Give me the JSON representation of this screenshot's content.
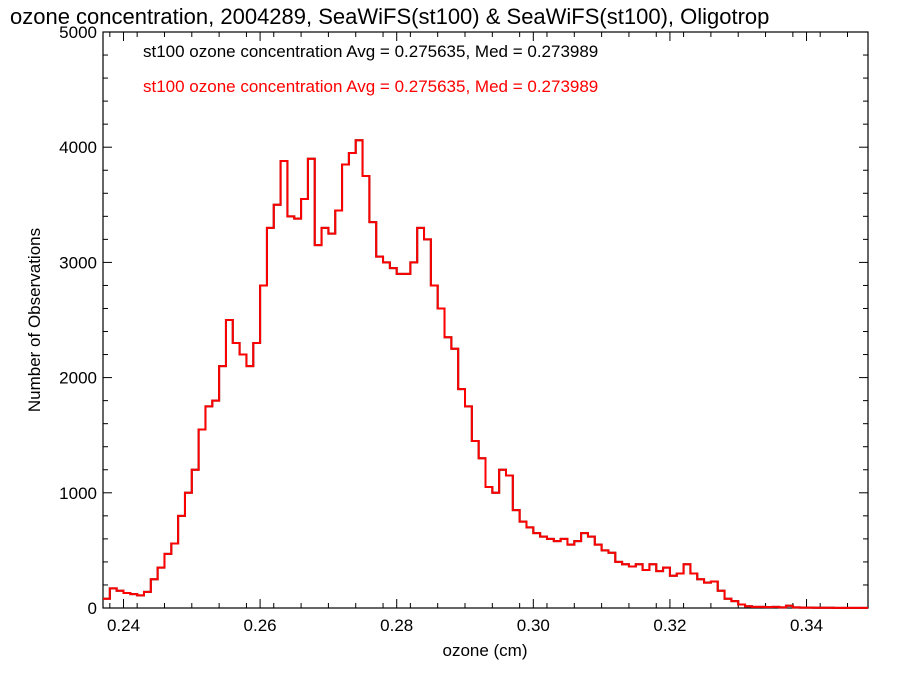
{
  "chart_data": {
    "type": "histogram",
    "title": "ozone concentration, 2004289, SeaWiFS(st100) & SeaWiFS(st100), Oligotrop",
    "xlabel": "ozone (cm)",
    "ylabel": "Number of Observations",
    "xlim": [
      0.237,
      0.349
    ],
    "ylim": [
      0,
      5000
    ],
    "xticks": [
      0.24,
      0.26,
      0.28,
      0.3,
      0.32,
      0.34
    ],
    "xtick_labels": [
      "0.24",
      "0.26",
      "0.28",
      "0.30",
      "0.32",
      "0.34"
    ],
    "yticks": [
      0,
      1000,
      2000,
      3000,
      4000,
      5000
    ],
    "ytick_labels": [
      "0",
      "1000",
      "2000",
      "3000",
      "4000",
      "5000"
    ],
    "grid": false,
    "legend_placement": "top-left",
    "series": [
      {
        "name": "st100 ozone concentration Avg = 0.275635, Med = 0.273989",
        "color": "#000000",
        "x": [
          0.237,
          0.238,
          0.239,
          0.24,
          0.241,
          0.242,
          0.243,
          0.244,
          0.245,
          0.246,
          0.247,
          0.248,
          0.249,
          0.25,
          0.251,
          0.252,
          0.253,
          0.254,
          0.255,
          0.256,
          0.257,
          0.258,
          0.259,
          0.26,
          0.261,
          0.262,
          0.263,
          0.264,
          0.265,
          0.266,
          0.267,
          0.268,
          0.269,
          0.27,
          0.271,
          0.272,
          0.273,
          0.274,
          0.275,
          0.276,
          0.277,
          0.278,
          0.279,
          0.28,
          0.281,
          0.282,
          0.283,
          0.284,
          0.285,
          0.286,
          0.287,
          0.288,
          0.289,
          0.29,
          0.291,
          0.292,
          0.293,
          0.294,
          0.295,
          0.296,
          0.297,
          0.298,
          0.299,
          0.3,
          0.301,
          0.302,
          0.303,
          0.304,
          0.305,
          0.306,
          0.307,
          0.308,
          0.309,
          0.31,
          0.311,
          0.312,
          0.313,
          0.314,
          0.315,
          0.316,
          0.317,
          0.318,
          0.319,
          0.32,
          0.321,
          0.322,
          0.323,
          0.324,
          0.325,
          0.326,
          0.327,
          0.328,
          0.329,
          0.33,
          0.331,
          0.332,
          0.333,
          0.334,
          0.335,
          0.336,
          0.337,
          0.338,
          0.339,
          0.34,
          0.341,
          0.342,
          0.343,
          0.344,
          0.345,
          0.346,
          0.347,
          0.348
        ],
        "values": [
          80,
          170,
          150,
          130,
          120,
          110,
          140,
          250,
          350,
          470,
          560,
          800,
          1000,
          1200,
          1550,
          1750,
          1800,
          2100,
          2500,
          2300,
          2200,
          2100,
          2300,
          2800,
          3300,
          3500,
          3880,
          3400,
          3380,
          3550,
          3900,
          3150,
          3300,
          3250,
          3450,
          3850,
          3950,
          4060,
          3750,
          3350,
          3050,
          3000,
          2950,
          2900,
          2900,
          3000,
          3300,
          3200,
          2800,
          2600,
          2350,
          2250,
          1900,
          1750,
          1450,
          1300,
          1050,
          1000,
          1200,
          1150,
          850,
          750,
          700,
          650,
          620,
          600,
          580,
          600,
          550,
          580,
          650,
          620,
          550,
          500,
          480,
          400,
          380,
          360,
          380,
          330,
          380,
          320,
          350,
          280,
          300,
          380,
          300,
          250,
          220,
          230,
          150,
          80,
          60,
          30,
          15,
          10,
          10,
          8,
          10,
          5,
          20,
          5,
          3,
          3,
          2,
          2,
          2,
          1,
          1,
          1,
          1,
          1
        ]
      },
      {
        "name": "st100 ozone concentration Avg = 0.275635, Med = 0.273989",
        "color": "#ff0000",
        "x": [
          0.237,
          0.238,
          0.239,
          0.24,
          0.241,
          0.242,
          0.243,
          0.244,
          0.245,
          0.246,
          0.247,
          0.248,
          0.249,
          0.25,
          0.251,
          0.252,
          0.253,
          0.254,
          0.255,
          0.256,
          0.257,
          0.258,
          0.259,
          0.26,
          0.261,
          0.262,
          0.263,
          0.264,
          0.265,
          0.266,
          0.267,
          0.268,
          0.269,
          0.27,
          0.271,
          0.272,
          0.273,
          0.274,
          0.275,
          0.276,
          0.277,
          0.278,
          0.279,
          0.28,
          0.281,
          0.282,
          0.283,
          0.284,
          0.285,
          0.286,
          0.287,
          0.288,
          0.289,
          0.29,
          0.291,
          0.292,
          0.293,
          0.294,
          0.295,
          0.296,
          0.297,
          0.298,
          0.299,
          0.3,
          0.301,
          0.302,
          0.303,
          0.304,
          0.305,
          0.306,
          0.307,
          0.308,
          0.309,
          0.31,
          0.311,
          0.312,
          0.313,
          0.314,
          0.315,
          0.316,
          0.317,
          0.318,
          0.319,
          0.32,
          0.321,
          0.322,
          0.323,
          0.324,
          0.325,
          0.326,
          0.327,
          0.328,
          0.329,
          0.33,
          0.331,
          0.332,
          0.333,
          0.334,
          0.335,
          0.336,
          0.337,
          0.338,
          0.339,
          0.34,
          0.341,
          0.342,
          0.343,
          0.344,
          0.345,
          0.346,
          0.347,
          0.348
        ],
        "values": [
          80,
          170,
          150,
          130,
          120,
          110,
          140,
          250,
          350,
          470,
          560,
          800,
          1000,
          1200,
          1550,
          1750,
          1800,
          2100,
          2500,
          2300,
          2200,
          2100,
          2300,
          2800,
          3300,
          3500,
          3880,
          3400,
          3380,
          3550,
          3900,
          3150,
          3300,
          3250,
          3450,
          3850,
          3950,
          4060,
          3750,
          3350,
          3050,
          3000,
          2950,
          2900,
          2900,
          3000,
          3300,
          3200,
          2800,
          2600,
          2350,
          2250,
          1900,
          1750,
          1450,
          1300,
          1050,
          1000,
          1200,
          1150,
          850,
          750,
          700,
          650,
          620,
          600,
          580,
          600,
          550,
          580,
          650,
          620,
          550,
          500,
          480,
          400,
          380,
          360,
          380,
          330,
          380,
          320,
          350,
          280,
          300,
          380,
          300,
          250,
          220,
          230,
          150,
          80,
          60,
          30,
          15,
          10,
          10,
          8,
          10,
          5,
          20,
          5,
          3,
          3,
          2,
          2,
          2,
          1,
          1,
          1,
          1,
          1
        ]
      }
    ]
  }
}
